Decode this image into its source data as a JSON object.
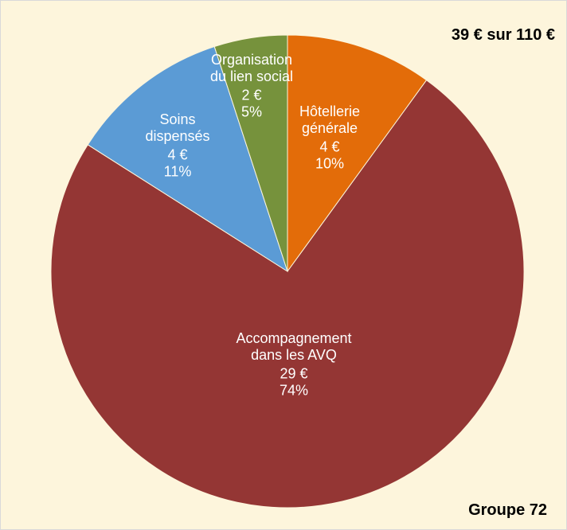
{
  "chart_data": {
    "type": "pie",
    "title": "39 € sur 110 €",
    "subtitle": "Groupe 72",
    "categories": [
      "Hôtellerie\ngénérale",
      "Accompagnement\ndans les AVQ",
      "Soins\ndispensés",
      "Organisation\ndu lien social"
    ],
    "values": [
      10,
      74,
      11,
      5
    ],
    "value_labels": [
      "10%",
      "74%",
      "11%",
      "5%"
    ],
    "amounts": [
      4,
      29,
      4,
      2
    ],
    "amount_labels": [
      "4 €",
      "29 €",
      "4 €",
      "2 €"
    ],
    "colors": [
      "#e36c09",
      "#943634",
      "#5b9bd5",
      "#76923c"
    ]
  }
}
